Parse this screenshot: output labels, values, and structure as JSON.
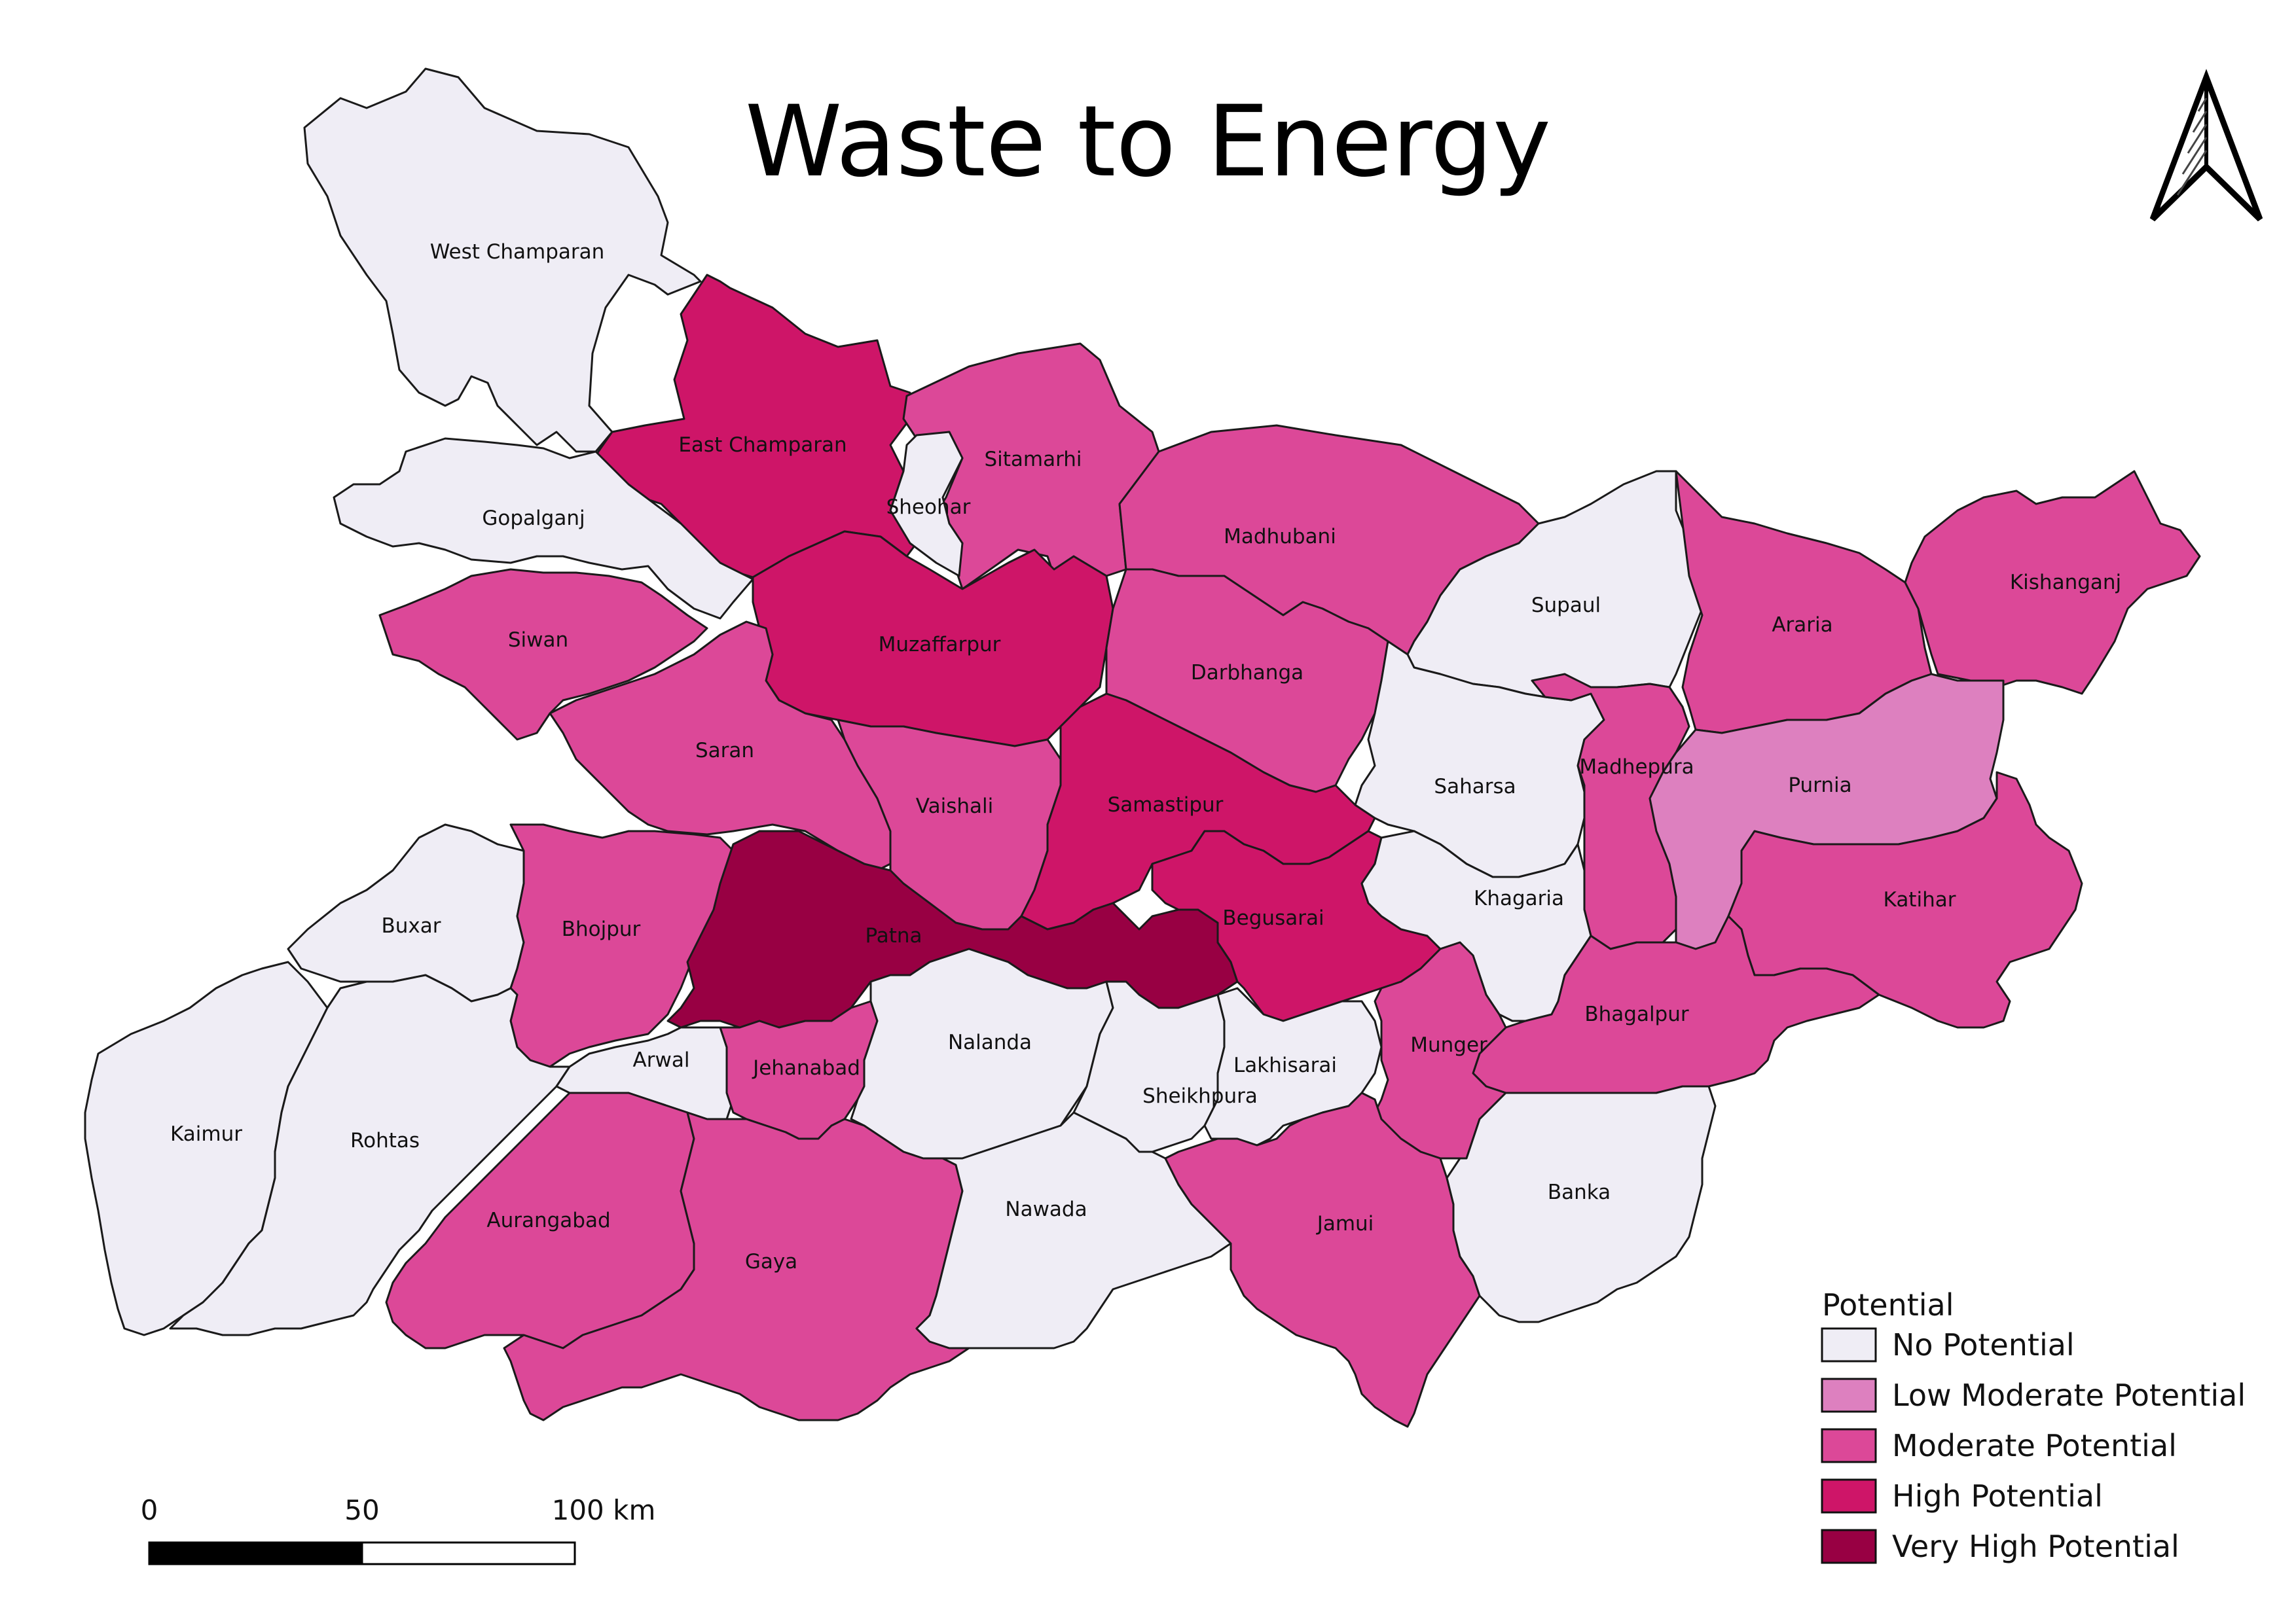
{
  "title": "Waste to Energy",
  "legend": {
    "title": "Potential",
    "items": [
      {
        "key": "none",
        "label": "No Potential",
        "color": "#efedf5"
      },
      {
        "key": "lowmod",
        "label": "Low Moderate Potential",
        "color": "#dd80bf"
      },
      {
        "key": "mod",
        "label": "Moderate Potential",
        "color": "#dc4898"
      },
      {
        "key": "high",
        "label": "High Potential",
        "color": "#ce1568"
      },
      {
        "key": "vhigh",
        "label": "Very High Potential",
        "color": "#980043"
      }
    ]
  },
  "scale_bar": {
    "labels": [
      "0",
      "50",
      "100 km"
    ]
  },
  "north_arrow": {
    "icon": "north-arrow-icon"
  },
  "districts": [
    {
      "name": "West Champaran",
      "class": "none"
    },
    {
      "name": "East Champaran",
      "class": "high"
    },
    {
      "name": "Sitamarhi",
      "class": "mod"
    },
    {
      "name": "Sheohar",
      "class": "none"
    },
    {
      "name": "Gopalganj",
      "class": "none"
    },
    {
      "name": "Madhubani",
      "class": "mod"
    },
    {
      "name": "Supaul",
      "class": "none"
    },
    {
      "name": "Araria",
      "class": "mod"
    },
    {
      "name": "Kishanganj",
      "class": "mod"
    },
    {
      "name": "Siwan",
      "class": "mod"
    },
    {
      "name": "Muzaffarpur",
      "class": "high"
    },
    {
      "name": "Darbhanga",
      "class": "mod"
    },
    {
      "name": "Saran",
      "class": "mod"
    },
    {
      "name": "Vaishali",
      "class": "mod"
    },
    {
      "name": "Samastipur",
      "class": "high"
    },
    {
      "name": "Saharsa",
      "class": "none"
    },
    {
      "name": "Madhepura",
      "class": "mod"
    },
    {
      "name": "Purnia",
      "class": "lowmod"
    },
    {
      "name": "Katihar",
      "class": "mod"
    },
    {
      "name": "Buxar",
      "class": "none"
    },
    {
      "name": "Bhojpur",
      "class": "mod"
    },
    {
      "name": "Patna",
      "class": "vhigh"
    },
    {
      "name": "Begusarai",
      "class": "high"
    },
    {
      "name": "Khagaria",
      "class": "none"
    },
    {
      "name": "Bhagalpur",
      "class": "mod"
    },
    {
      "name": "Kaimur",
      "class": "none"
    },
    {
      "name": "Rohtas",
      "class": "none"
    },
    {
      "name": "Arwal",
      "class": "none"
    },
    {
      "name": "Jehanabad",
      "class": "mod"
    },
    {
      "name": "Nalanda",
      "class": "none"
    },
    {
      "name": "Sheikhpura",
      "class": "none"
    },
    {
      "name": "Lakhisarai",
      "class": "none"
    },
    {
      "name": "Munger",
      "class": "mod"
    },
    {
      "name": "Aurangabad",
      "class": "mod"
    },
    {
      "name": "Gaya",
      "class": "mod"
    },
    {
      "name": "Nawada",
      "class": "none"
    },
    {
      "name": "Jamui",
      "class": "mod"
    },
    {
      "name": "Banka",
      "class": "none"
    }
  ]
}
